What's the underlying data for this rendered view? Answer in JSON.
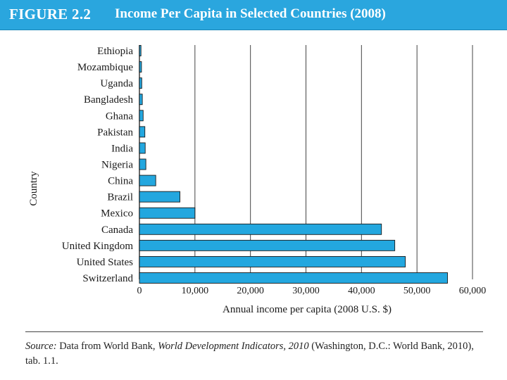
{
  "figure": {
    "number": "FIGURE 2.2",
    "title": "Income Per Capita in Selected Countries (2008)"
  },
  "source": {
    "prefix": "Source:",
    "part1": " Data from World Bank, ",
    "italic_title": "World Development Indicators, 2010",
    "part2": " (Washington, D.C.: World Bank, 2010), tab. 1.1."
  },
  "colors": {
    "header": "#2aa6de",
    "bar": "#23a7df",
    "bar_stroke": "#1a1a1a",
    "grid": "#444444"
  },
  "chart_data": {
    "type": "bar",
    "orientation": "horizontal",
    "title": "Income Per Capita in Selected Countries (2008)",
    "xlabel": "Annual income per capita (2008 U.S. $)",
    "ylabel": "Country",
    "xlim": [
      0,
      60000
    ],
    "xticks": [
      0,
      10000,
      20000,
      30000,
      40000,
      50000,
      60000
    ],
    "xtick_labels": [
      "0",
      "10,000",
      "20,000",
      "30,000",
      "40,000",
      "50,000",
      "60,000"
    ],
    "grid": true,
    "categories": [
      "Ethiopia",
      "Mozambique",
      "Uganda",
      "Bangladesh",
      "Ghana",
      "Pakistan",
      "India",
      "Nigeria",
      "China",
      "Brazil",
      "Mexico",
      "Canada",
      "United Kingdom",
      "United States",
      "Switzerland"
    ],
    "values": [
      280,
      370,
      420,
      520,
      670,
      980,
      1040,
      1160,
      2940,
      7300,
      10000,
      43600,
      46000,
      47900,
      55500
    ]
  }
}
